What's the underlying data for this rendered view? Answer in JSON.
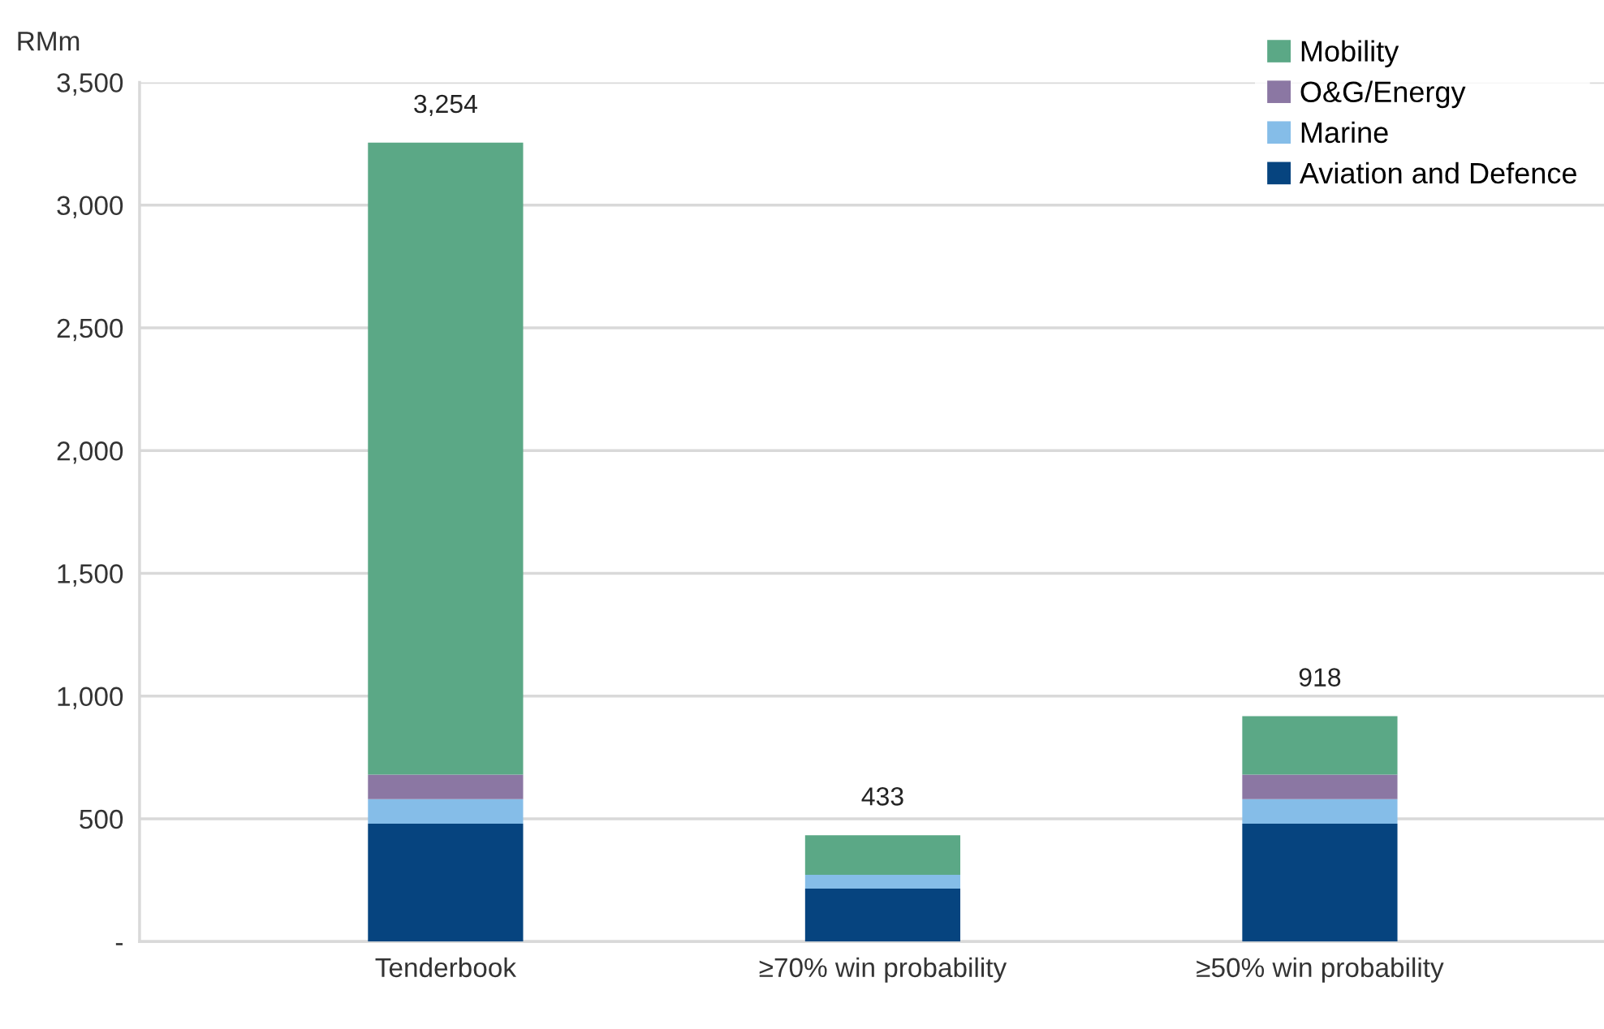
{
  "chart_data": {
    "type": "bar",
    "stacked": true,
    "ylabel": "RMm",
    "categories": [
      "Tenderbook",
      "≥70% win probability",
      "≥50% win probability"
    ],
    "series": [
      {
        "name": "Aviation and Defence",
        "color": "#06447f",
        "values": [
          480,
          216,
          480
        ]
      },
      {
        "name": "Marine",
        "color": "#85bde8",
        "values": [
          100,
          56,
          100
        ]
      },
      {
        "name": "O&G/Energy",
        "color": "#8b77a3",
        "values": [
          100,
          0,
          100
        ]
      },
      {
        "name": "Mobility",
        "color": "#5ba886",
        "values": [
          2574,
          161,
          238
        ]
      }
    ],
    "totals": [
      "3,254",
      "433",
      "918"
    ],
    "ylim": [
      0,
      3500
    ],
    "yticks": [
      {
        "value": 0,
        "label": "-"
      },
      {
        "value": 500,
        "label": "500"
      },
      {
        "value": 1000,
        "label": "1,000"
      },
      {
        "value": 1500,
        "label": "1,500"
      },
      {
        "value": 2000,
        "label": "2,000"
      },
      {
        "value": 2500,
        "label": "2,500"
      },
      {
        "value": 3000,
        "label": "3,000"
      },
      {
        "value": 3500,
        "label": "3,500"
      }
    ],
    "grid": "y",
    "legend": "top right"
  }
}
